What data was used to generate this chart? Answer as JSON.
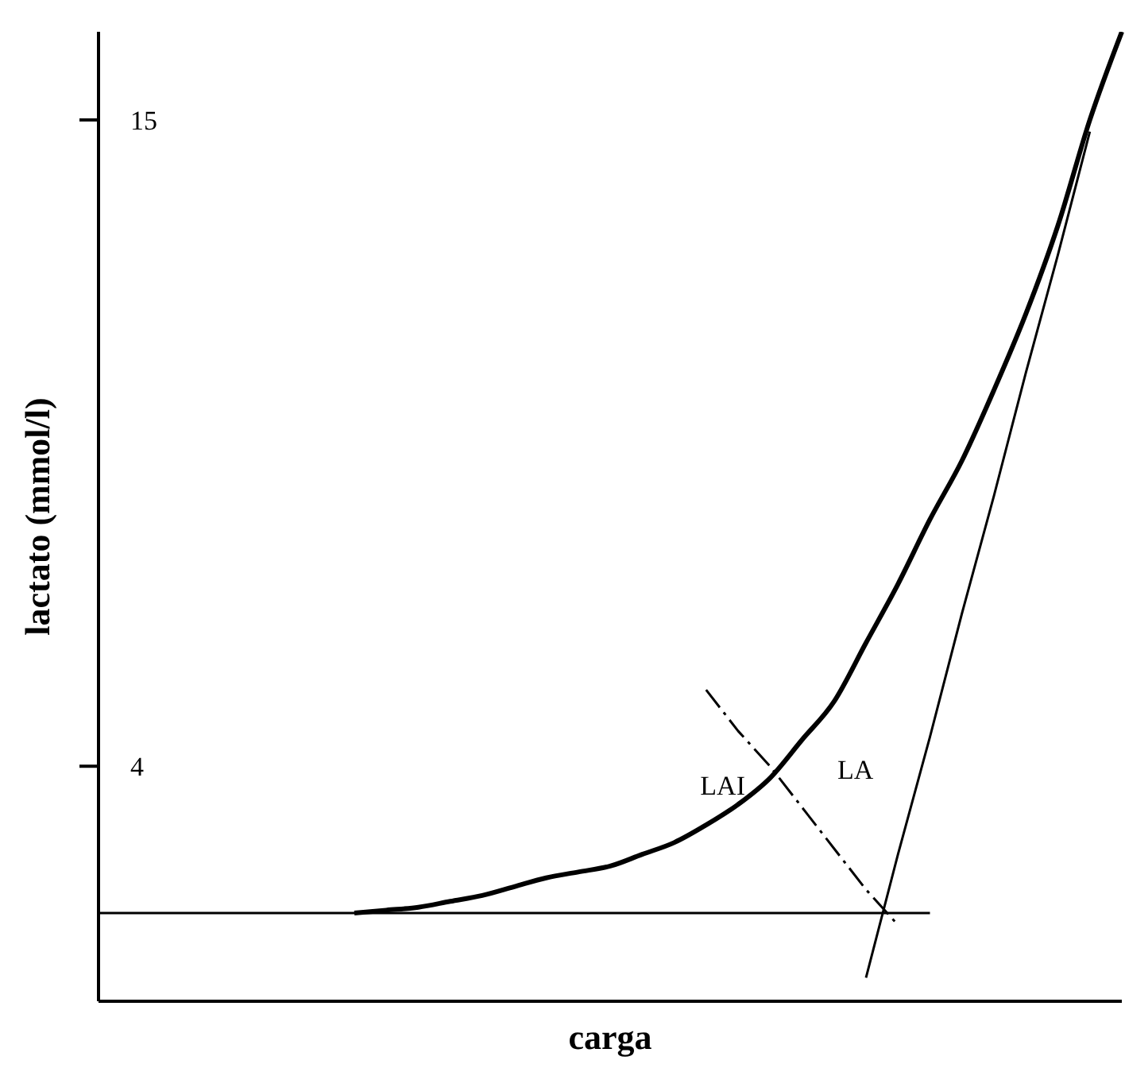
{
  "chart_data": {
    "type": "line",
    "xlabel": "carga",
    "ylabel": "lactato (mmol/l)",
    "categories": [
      null,
      null,
      null,
      null,
      null,
      null,
      null,
      null,
      null,
      null,
      null,
      null,
      null,
      null,
      null,
      null,
      null,
      null,
      null,
      null,
      null,
      null,
      null,
      null,
      null,
      null,
      null,
      null,
      null,
      null,
      null,
      null,
      null
    ],
    "series": [
      {
        "color": "#000000",
        "line_style": "solid",
        "values": [
          null,
          null,
          null,
          null,
          null,
          null,
          null,
          null,
          1.5,
          1.55,
          1.6,
          1.7,
          1.8,
          1.95,
          2.1,
          2.2,
          2.3,
          2.5,
          2.7,
          3.0,
          3.35,
          3.8,
          4.45,
          5.1,
          6.1,
          7.1,
          8.2,
          9.2,
          10.4,
          11.7,
          13.2,
          15.0,
          16.5
        ]
      },
      {
        "color": "#000000",
        "line_style": "solid",
        "values": [
          1.5,
          1.5,
          1.5,
          1.5,
          1.5,
          1.5,
          1.5,
          1.5,
          1.5,
          1.5,
          1.5,
          1.5,
          1.5,
          1.5,
          1.5,
          1.5,
          1.5,
          1.5,
          1.5,
          1.5,
          1.5,
          1.5,
          1.5,
          1.5,
          1.5,
          1.5,
          1.5,
          null,
          null,
          null,
          null,
          null,
          null
        ]
      },
      {
        "color": "#000000",
        "line_style": "solid",
        "values": [
          null,
          null,
          null,
          null,
          null,
          null,
          null,
          null,
          null,
          null,
          null,
          null,
          null,
          null,
          null,
          null,
          null,
          null,
          null,
          null,
          null,
          null,
          null,
          null,
          0.4,
          2.5,
          4.5,
          6.6,
          8.6,
          10.7,
          12.7,
          14.8,
          null
        ]
      },
      {
        "color": "#000000",
        "line_style": "dashed",
        "values": [
          null,
          null,
          null,
          null,
          null,
          null,
          null,
          null,
          null,
          null,
          null,
          null,
          null,
          null,
          null,
          null,
          null,
          null,
          null,
          5.3,
          4.6,
          4.0,
          3.3,
          2.6,
          1.9,
          1.3,
          null,
          null,
          null,
          null,
          null,
          null,
          null
        ]
      }
    ],
    "ylim": [
      0,
      16.5
    ],
    "yticks": [
      4,
      15
    ],
    "tick_labels": "y",
    "grid": false,
    "marker": "none",
    "annotations": [
      "LAI",
      "LA"
    ]
  }
}
